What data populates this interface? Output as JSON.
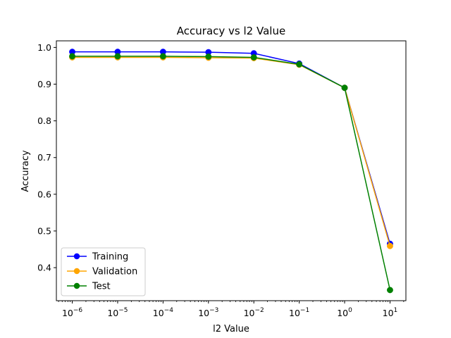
{
  "chart_data": {
    "type": "line",
    "title": "Accuracy vs l2 Value",
    "xlabel": "l2 Value",
    "ylabel": "Accuracy",
    "xscale": "log",
    "x": [
      1e-06,
      1e-05,
      0.0001,
      0.001,
      0.01,
      0.1,
      1,
      10
    ],
    "x_tick_labels": [
      {
        "base": "10",
        "exp": "−6"
      },
      {
        "base": "10",
        "exp": "−5"
      },
      {
        "base": "10",
        "exp": "−4"
      },
      {
        "base": "10",
        "exp": "−3"
      },
      {
        "base": "10",
        "exp": "−2"
      },
      {
        "base": "10",
        "exp": "−1"
      },
      {
        "base": "10",
        "exp": "0"
      },
      {
        "base": "10",
        "exp": "1"
      }
    ],
    "y_ticks": [
      0.4,
      0.5,
      0.6,
      0.7,
      0.8,
      0.9,
      1.0
    ],
    "y_tick_labels": [
      "0.4",
      "0.5",
      "0.6",
      "0.7",
      "0.8",
      "0.9",
      "1.0"
    ],
    "ylim": [
      0.31,
      1.018
    ],
    "xlim_log10": [
      -6.35,
      1.35
    ],
    "grid": false,
    "legend_position": "lower-left",
    "series": [
      {
        "name": "Training",
        "color": "#0000ff",
        "values": [
          0.988,
          0.988,
          0.988,
          0.987,
          0.984,
          0.956,
          0.89,
          0.465
        ]
      },
      {
        "name": "Validation",
        "color": "#ffa500",
        "values": [
          0.973,
          0.973,
          0.973,
          0.972,
          0.971,
          0.953,
          0.89,
          0.459
        ]
      },
      {
        "name": "Test",
        "color": "#008000",
        "values": [
          0.976,
          0.976,
          0.976,
          0.975,
          0.973,
          0.954,
          0.89,
          0.339
        ]
      }
    ]
  }
}
